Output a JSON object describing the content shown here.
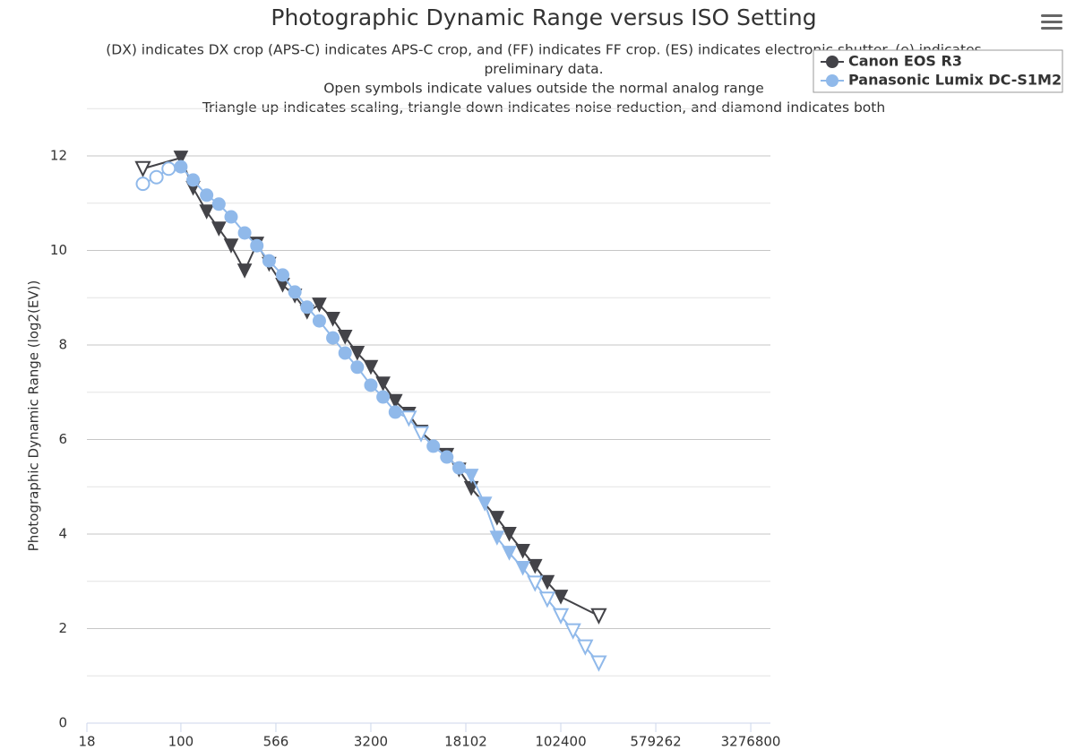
{
  "chart_data": {
    "type": "line",
    "title": "Photographic Dynamic Range versus ISO Setting",
    "subtitle": [
      "(DX) indicates DX crop (APS-C) indicates APS-C crop, and (FF) indicates FF crop. (ES) indicates electronic shutter. (e) indicates",
      "preliminary data.",
      "Open symbols indicate values outside the normal analog range",
      "Triangle up indicates scaling, triangle down indicates noise reduction, and diamond indicates both"
    ],
    "y_label": "Photographic Dynamic Range (log2(EV))",
    "x_log": true,
    "xlim": [
      18,
      4690000
    ],
    "xticks": [
      18,
      100,
      566,
      3200,
      18102,
      102400,
      579262,
      3276800
    ],
    "ylim": [
      0,
      13
    ],
    "yticks": [
      0,
      2,
      4,
      6,
      8,
      10,
      12
    ],
    "minor_yticks": [
      1,
      3,
      5,
      7,
      9,
      11,
      13
    ],
    "grid": true,
    "legend": "top-right",
    "series": [
      {
        "name": "Canon EOS R3",
        "color": "#434348",
        "x": [
          50,
          100,
          125,
          160,
          200,
          250,
          320,
          400,
          500,
          640,
          800,
          1000,
          1250,
          1600,
          2000,
          2500,
          3200,
          4000,
          5000,
          6400,
          8000,
          12800,
          16000,
          20000,
          32000,
          40000,
          51200,
          64000,
          80000,
          102400,
          204800
        ],
        "values": [
          11.73,
          11.96,
          11.32,
          10.82,
          10.46,
          10.1,
          9.57,
          10.14,
          9.71,
          9.27,
          9.04,
          8.7,
          8.85,
          8.55,
          8.17,
          7.83,
          7.53,
          7.18,
          6.81,
          6.54,
          6.16,
          5.67,
          5.36,
          4.97,
          4.34,
          4.0,
          3.64,
          3.32,
          2.98,
          2.67,
          2.27
        ],
        "symbols": [
          "triangle-down-open",
          "triangle-down",
          "triangle-down",
          "triangle-down",
          "triangle-down",
          "triangle-down",
          "triangle-down",
          "triangle-down",
          "triangle-down",
          "triangle-down",
          "triangle-down",
          "triangle-down",
          "triangle-down",
          "triangle-down",
          "triangle-down",
          "triangle-down",
          "triangle-down",
          "triangle-down",
          "triangle-down",
          "triangle-down",
          "triangle-down",
          "triangle-down",
          "triangle-down",
          "triangle-down",
          "triangle-down",
          "triangle-down",
          "triangle-down",
          "triangle-down",
          "triangle-down",
          "triangle-down",
          "triangle-down-open"
        ]
      },
      {
        "name": "Panasonic Lumix DC-S1M2",
        "color": "#90b9ea",
        "x": [
          50,
          64,
          80,
          100,
          125,
          160,
          200,
          250,
          320,
          400,
          500,
          640,
          800,
          1000,
          1250,
          1600,
          2000,
          2500,
          3200,
          4000,
          5000,
          6400,
          8000,
          10000,
          12800,
          16000,
          20000,
          25600,
          32000,
          40000,
          51200,
          64000,
          80000,
          102400,
          128000,
          160000,
          204800
        ],
        "values": [
          11.41,
          11.55,
          11.73,
          11.77,
          11.49,
          11.17,
          10.98,
          10.71,
          10.37,
          10.1,
          9.78,
          9.48,
          9.12,
          8.8,
          8.51,
          8.15,
          7.83,
          7.53,
          7.15,
          6.9,
          6.58,
          6.45,
          6.12,
          5.86,
          5.63,
          5.4,
          5.23,
          4.64,
          3.92,
          3.6,
          3.28,
          2.96,
          2.62,
          2.27,
          1.95,
          1.61,
          1.27
        ],
        "symbols": [
          "circle-open",
          "circle-open",
          "circle-open",
          "circle",
          "circle",
          "circle",
          "circle",
          "circle",
          "circle",
          "circle",
          "circle",
          "circle",
          "circle",
          "circle",
          "circle",
          "circle",
          "circle",
          "circle",
          "circle",
          "circle",
          "circle",
          "triangle-down-open",
          "triangle-down-open",
          "circle",
          "circle",
          "circle",
          "triangle-down",
          "triangle-down",
          "triangle-down",
          "triangle-down",
          "triangle-down",
          "triangle-down-open",
          "triangle-down-open",
          "triangle-down-open",
          "triangle-down-open",
          "triangle-down-open",
          "triangle-down-open"
        ]
      }
    ]
  }
}
